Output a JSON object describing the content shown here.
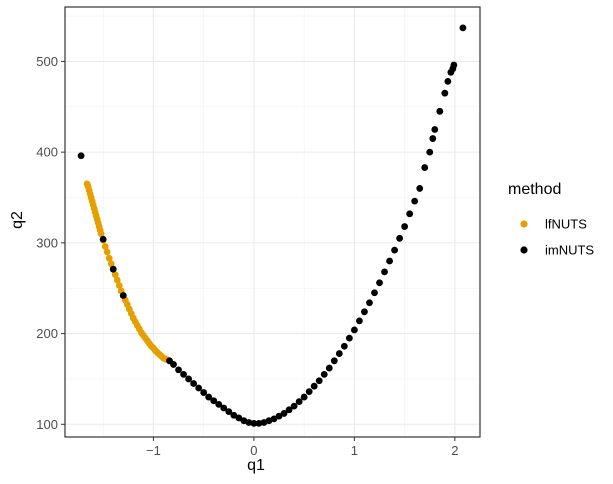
{
  "chart_data": {
    "type": "scatter",
    "xlabel": "q1",
    "ylabel": "q2",
    "xlim": [
      -1.88,
      2.25
    ],
    "ylim": [
      86,
      560
    ],
    "x_ticks": [
      -1,
      0,
      1,
      2
    ],
    "x_tick_labels": [
      "−1",
      "0",
      "1",
      "2"
    ],
    "y_ticks": [
      100,
      200,
      300,
      400,
      500
    ],
    "y_tick_labels": [
      "100",
      "200",
      "300",
      "400",
      "500"
    ],
    "grid": true,
    "legend": {
      "title": "method",
      "position": "right",
      "entries": [
        {
          "label": "lfNUTS",
          "color": "#E69F00"
        },
        {
          "label": "imNUTS",
          "color": "#000000"
        }
      ]
    },
    "series": [
      {
        "name": "lfNUTS",
        "color": "#E69F00",
        "points": [
          [
            -1.66,
            365
          ],
          [
            -1.65,
            362
          ],
          [
            -1.64,
            358
          ],
          [
            -1.63,
            354
          ],
          [
            -1.62,
            350
          ],
          [
            -1.61,
            346
          ],
          [
            -1.6,
            342
          ],
          [
            -1.59,
            338
          ],
          [
            -1.58,
            334
          ],
          [
            -1.57,
            330
          ],
          [
            -1.56,
            326
          ],
          [
            -1.55,
            322
          ],
          [
            -1.54,
            318
          ],
          [
            -1.53,
            314
          ],
          [
            -1.52,
            310
          ],
          [
            -1.5,
            303
          ],
          [
            -1.48,
            296
          ],
          [
            -1.46,
            290
          ],
          [
            -1.44,
            283
          ],
          [
            -1.42,
            277
          ],
          [
            -1.4,
            271
          ],
          [
            -1.38,
            265
          ],
          [
            -1.36,
            259
          ],
          [
            -1.34,
            253
          ],
          [
            -1.32,
            247
          ],
          [
            -1.3,
            242
          ],
          [
            -1.28,
            237
          ],
          [
            -1.26,
            232
          ],
          [
            -1.24,
            227
          ],
          [
            -1.22,
            222
          ],
          [
            -1.2,
            217
          ],
          [
            -1.18,
            213
          ],
          [
            -1.16,
            209
          ],
          [
            -1.14,
            205
          ],
          [
            -1.12,
            201
          ],
          [
            -1.1,
            198
          ],
          [
            -1.08,
            195
          ],
          [
            -1.06,
            192
          ],
          [
            -1.04,
            189
          ],
          [
            -1.02,
            186
          ],
          [
            -1.0,
            184
          ],
          [
            -0.98,
            181
          ],
          [
            -0.96,
            179
          ],
          [
            -0.94,
            177
          ],
          [
            -0.92,
            175
          ],
          [
            -0.9,
            173
          ],
          [
            -0.88,
            172
          ],
          [
            -0.86,
            171
          ],
          [
            -0.84,
            170
          ]
        ]
      },
      {
        "name": "imNUTS",
        "color": "#000000",
        "points": [
          [
            -1.72,
            396
          ],
          [
            -1.5,
            304
          ],
          [
            -1.4,
            271
          ],
          [
            -1.3,
            242
          ],
          [
            -0.84,
            170
          ],
          [
            -0.8,
            166
          ],
          [
            -0.75,
            160
          ],
          [
            -0.7,
            155
          ],
          [
            -0.65,
            150
          ],
          [
            -0.6,
            145
          ],
          [
            -0.55,
            140
          ],
          [
            -0.5,
            135
          ],
          [
            -0.45,
            130
          ],
          [
            -0.4,
            126
          ],
          [
            -0.35,
            122
          ],
          [
            -0.3,
            118
          ],
          [
            -0.25,
            114
          ],
          [
            -0.2,
            110
          ],
          [
            -0.15,
            107
          ],
          [
            -0.1,
            104
          ],
          [
            -0.05,
            102
          ],
          [
            0.0,
            101
          ],
          [
            0.05,
            101
          ],
          [
            0.1,
            102
          ],
          [
            0.15,
            104
          ],
          [
            0.2,
            106
          ],
          [
            0.25,
            109
          ],
          [
            0.3,
            112
          ],
          [
            0.35,
            116
          ],
          [
            0.4,
            120
          ],
          [
            0.45,
            125
          ],
          [
            0.5,
            130
          ],
          [
            0.55,
            136
          ],
          [
            0.6,
            142
          ],
          [
            0.65,
            148
          ],
          [
            0.7,
            155
          ],
          [
            0.75,
            162
          ],
          [
            0.8,
            170
          ],
          [
            0.85,
            178
          ],
          [
            0.9,
            186
          ],
          [
            0.95,
            195
          ],
          [
            1.0,
            204
          ],
          [
            1.05,
            214
          ],
          [
            1.1,
            224
          ],
          [
            1.15,
            234
          ],
          [
            1.2,
            245
          ],
          [
            1.25,
            256
          ],
          [
            1.3,
            268
          ],
          [
            1.35,
            280
          ],
          [
            1.4,
            292
          ],
          [
            1.45,
            305
          ],
          [
            1.5,
            318
          ],
          [
            1.55,
            332
          ],
          [
            1.6,
            346
          ],
          [
            1.65,
            360
          ],
          [
            1.7,
            383
          ],
          [
            1.75,
            400
          ],
          [
            1.78,
            415
          ],
          [
            1.8,
            425
          ],
          [
            1.85,
            445
          ],
          [
            1.9,
            465
          ],
          [
            1.93,
            478
          ],
          [
            1.96,
            488
          ],
          [
            1.98,
            492
          ],
          [
            1.99,
            496
          ],
          [
            2.08,
            537
          ]
        ]
      }
    ]
  }
}
